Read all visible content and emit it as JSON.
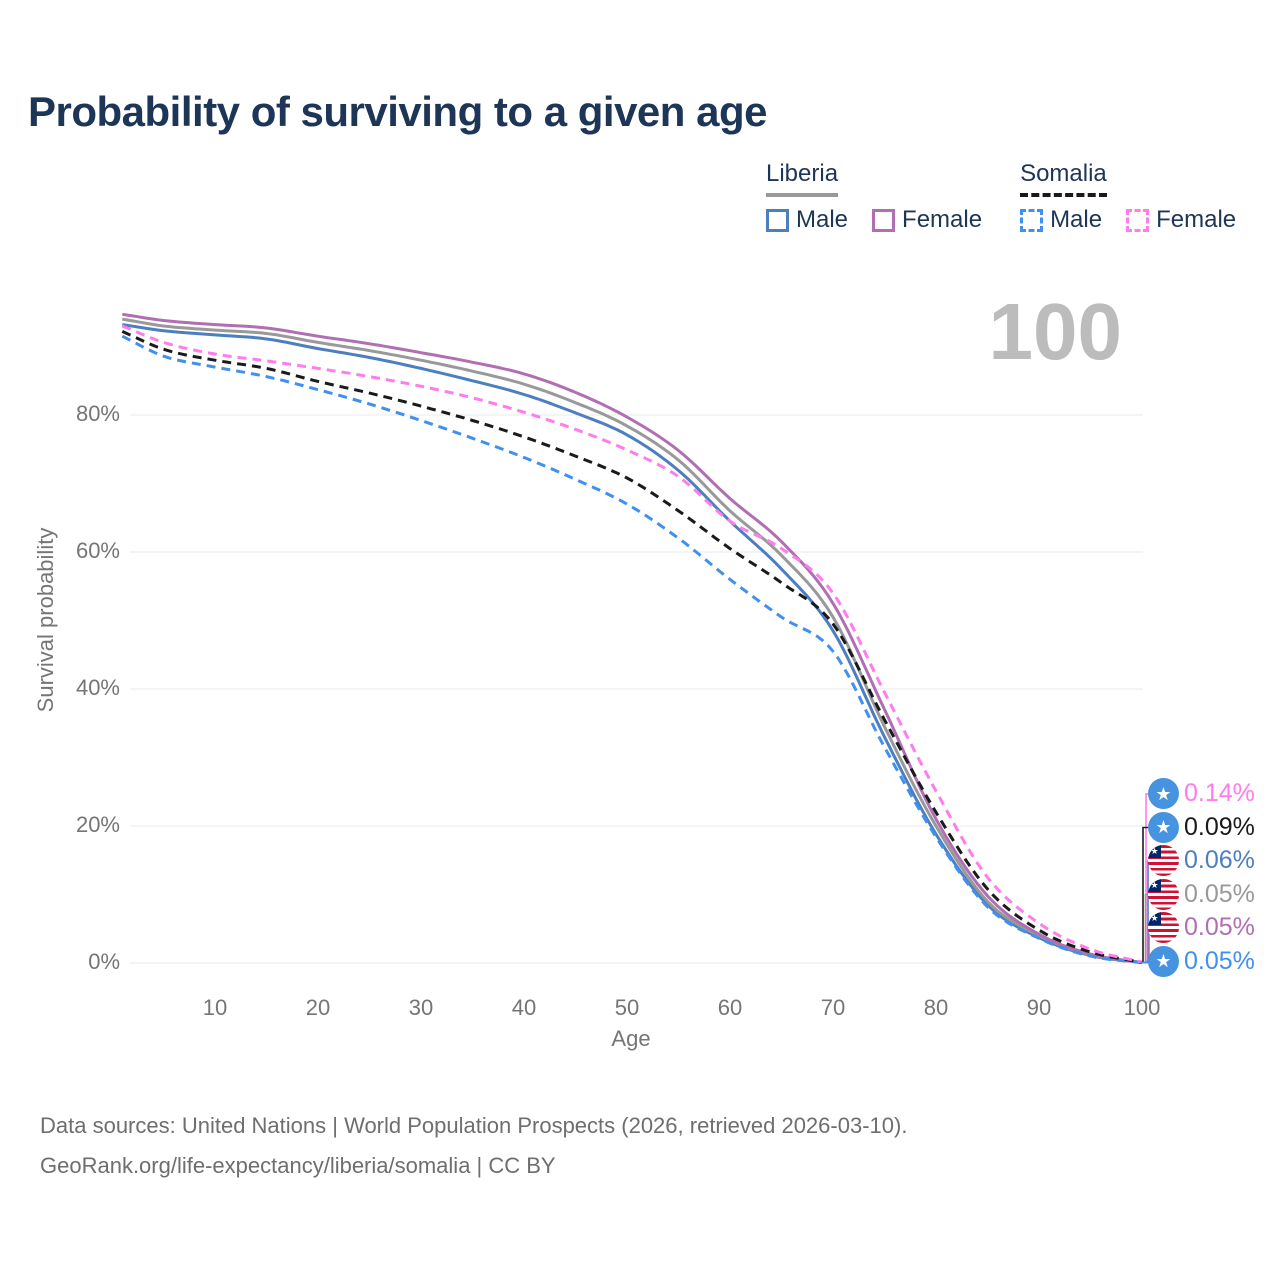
{
  "title": "Probability of surviving to a given age",
  "watermark": "100",
  "legend": {
    "groups": [
      {
        "id": "liberia",
        "label": "Liberia",
        "line_color": "#999999",
        "line_style": "solid",
        "items": [
          {
            "id": "male",
            "label": "Male",
            "color": "#4d7ebf"
          },
          {
            "id": "female",
            "label": "Female",
            "color": "#b06fb2"
          }
        ]
      },
      {
        "id": "somalia",
        "label": "Somalia",
        "line_color": "#1a1a1a",
        "line_style": "dashed",
        "items": [
          {
            "id": "male",
            "label": "Male",
            "color": "#4190f0"
          },
          {
            "id": "female",
            "label": "Female",
            "color": "#ff7cec"
          }
        ]
      }
    ]
  },
  "chart_data": {
    "type": "line",
    "title": "Probability of surviving to a given age",
    "xlabel": "Age",
    "ylabel": "Survival probability",
    "xlim": [
      1,
      100
    ],
    "ylim": [
      0,
      100
    ],
    "grid": "horizontal-only",
    "grid_color": "#e8e8e8",
    "legend_position": "top-right",
    "x_ticks": [
      {
        "value": 10,
        "label": "10"
      },
      {
        "value": 20,
        "label": "20"
      },
      {
        "value": 30,
        "label": "30"
      },
      {
        "value": 40,
        "label": "40"
      },
      {
        "value": 50,
        "label": "50"
      },
      {
        "value": 60,
        "label": "60"
      },
      {
        "value": 70,
        "label": "70"
      },
      {
        "value": 80,
        "label": "80"
      },
      {
        "value": 90,
        "label": "90"
      },
      {
        "value": 100,
        "label": "100"
      }
    ],
    "y_ticks": [
      {
        "value": 0,
        "label": "0%"
      },
      {
        "value": 20,
        "label": "20%"
      },
      {
        "value": 40,
        "label": "40%"
      },
      {
        "value": 60,
        "label": "60%"
      },
      {
        "value": 80,
        "label": "80%"
      }
    ],
    "x": [
      1,
      5,
      10,
      15,
      20,
      25,
      30,
      35,
      40,
      45,
      50,
      55,
      60,
      65,
      70,
      75,
      80,
      85,
      90,
      95,
      100
    ],
    "series": [
      {
        "id": "liberia_male",
        "name": "Liberia Male",
        "country": "Liberia",
        "sex": "Male",
        "flag": "liberia",
        "color": "#4d7ebf",
        "line_style": "solid",
        "end_label": "0.06%",
        "values": [
          93.2,
          92.3,
          91.7,
          91.1,
          89.7,
          88.4,
          86.8,
          85.0,
          83.0,
          80.3,
          77.1,
          71.9,
          64.5,
          57.5,
          48.5,
          33.0,
          18.8,
          8.5,
          3.7,
          1.1,
          0.06
        ]
      },
      {
        "id": "liberia_all",
        "name": "Liberia",
        "country": "Liberia",
        "sex": "All",
        "flag": "liberia",
        "color": "#999999",
        "line_style": "solid",
        "end_label": "0.05%",
        "values": [
          94.0,
          93.0,
          92.4,
          91.9,
          90.6,
          89.4,
          88.0,
          86.4,
          84.5,
          81.8,
          78.4,
          73.4,
          66.0,
          59.5,
          50.5,
          34.5,
          20.0,
          9.0,
          4.0,
          1.2,
          0.05
        ]
      },
      {
        "id": "liberia_female",
        "name": "Liberia Female",
        "country": "Liberia",
        "sex": "Female",
        "flag": "liberia",
        "color": "#b06fb2",
        "line_style": "solid",
        "end_label": "0.05%",
        "values": [
          94.7,
          93.8,
          93.2,
          92.7,
          91.5,
          90.4,
          89.1,
          87.7,
          86.0,
          83.3,
          79.7,
          74.8,
          67.8,
          61.5,
          52.5,
          37.0,
          21.0,
          9.8,
          4.2,
          1.3,
          0.05
        ]
      },
      {
        "id": "somalia_male",
        "name": "Somalia Male",
        "country": "Somalia",
        "sex": "Male",
        "flag": "somalia",
        "color": "#4190f0",
        "line_style": "dashed",
        "end_label": "0.05%",
        "values": [
          91.5,
          88.6,
          87.0,
          85.6,
          83.7,
          81.6,
          79.2,
          76.6,
          73.8,
          70.6,
          67.0,
          62.0,
          56.0,
          50.5,
          45.5,
          31.5,
          18.4,
          8.2,
          3.6,
          1.0,
          0.05
        ]
      },
      {
        "id": "somalia_all",
        "name": "Somalia",
        "country": "Somalia",
        "sex": "All",
        "flag": "somalia",
        "color": "#1a1a1a",
        "line_style": "dashed",
        "end_label": "0.09%",
        "values": [
          92.2,
          89.6,
          88.0,
          86.8,
          84.9,
          83.2,
          81.3,
          79.2,
          76.8,
          74.0,
          70.8,
          66.0,
          60.5,
          55.5,
          49.5,
          35.5,
          22.0,
          10.8,
          4.8,
          1.6,
          0.09
        ]
      },
      {
        "id": "somalia_female",
        "name": "Somalia Female",
        "country": "Somalia",
        "sex": "Female",
        "flag": "somalia",
        "color": "#ff7cec",
        "line_style": "dashed",
        "end_label": "0.14%",
        "values": [
          93.0,
          90.6,
          88.9,
          87.9,
          86.8,
          85.6,
          84.2,
          82.5,
          80.4,
          77.9,
          74.9,
          71.0,
          64.5,
          60.5,
          54.0,
          39.5,
          25.1,
          12.5,
          5.8,
          2.0,
          0.14
        ]
      }
    ],
    "end_label_order": [
      "somalia_female",
      "somalia_all",
      "liberia_male",
      "liberia_all",
      "liberia_female",
      "somalia_male"
    ]
  },
  "footer": {
    "line1": "Data sources: United Nations | World Population Prospects (2026, retrieved 2026-03-10).",
    "line2": "GeoRank.org/life-expectancy/liberia/somalia | CC BY"
  }
}
